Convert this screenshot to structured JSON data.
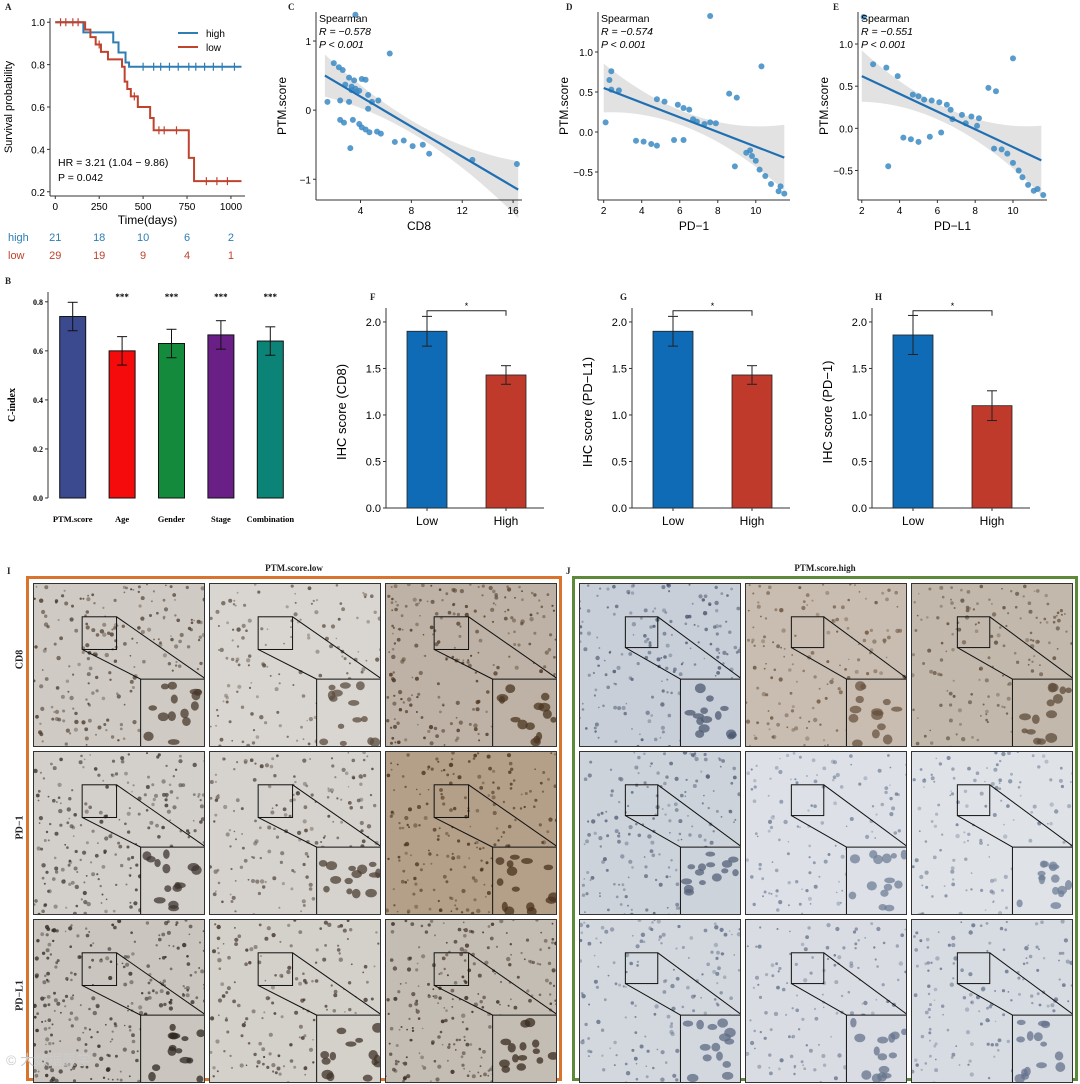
{
  "panel_labels": {
    "A": "A",
    "B": "B",
    "C": "C",
    "D": "D",
    "E": "E",
    "F": "F",
    "G": "G",
    "H": "H",
    "I": "I",
    "J": "J"
  },
  "colors": {
    "high": "#2e7db4",
    "low": "#c0432e",
    "scatter": "#3b8ac4",
    "fit": "#1f6fb2",
    "bar_low": "#0f6bb5",
    "bar_high": "#c03a2b",
    "frame_low": "#d9732e",
    "frame_high": "#5d8a3a"
  },
  "chart_data": [
    {
      "id": "A",
      "type": "line",
      "title": "",
      "xlabel": "Time(days)",
      "ylabel": "Survival probability",
      "xlim": [
        -30,
        1080
      ],
      "ylim": [
        0.18,
        1.02
      ],
      "xticks": [
        0,
        250,
        500,
        750,
        1000
      ],
      "yticks": [
        0.2,
        0.4,
        0.6,
        0.8,
        1.0
      ],
      "ytick_labels": [
        "0.2",
        "0.4",
        "0.6",
        "0.8",
        "1.0"
      ],
      "legend": [
        "high",
        "low"
      ],
      "series": [
        {
          "name": "high",
          "steps": [
            [
              0,
              1.0
            ],
            [
              160,
              1.0
            ],
            [
              160,
              0.952
            ],
            [
              330,
              0.952
            ],
            [
              330,
              0.905
            ],
            [
              360,
              0.905
            ],
            [
              360,
              0.857
            ],
            [
              400,
              0.857
            ],
            [
              400,
              0.81
            ],
            [
              420,
              0.81
            ],
            [
              420,
              0.79
            ],
            [
              1060,
              0.79
            ]
          ],
          "censor": [
            500,
            560,
            600,
            650,
            700,
            760,
            800,
            850,
            900,
            950,
            1020
          ]
        },
        {
          "name": "low",
          "steps": [
            [
              0,
              1.0
            ],
            [
              170,
              1.0
            ],
            [
              170,
              0.965
            ],
            [
              200,
              0.965
            ],
            [
              200,
              0.93
            ],
            [
              230,
              0.93
            ],
            [
              230,
              0.895
            ],
            [
              260,
              0.895
            ],
            [
              260,
              0.86
            ],
            [
              300,
              0.86
            ],
            [
              300,
              0.825
            ],
            [
              380,
              0.825
            ],
            [
              380,
              0.79
            ],
            [
              395,
              0.79
            ],
            [
              395,
              0.72
            ],
            [
              410,
              0.72
            ],
            [
              410,
              0.685
            ],
            [
              430,
              0.685
            ],
            [
              430,
              0.65
            ],
            [
              470,
              0.65
            ],
            [
              470,
              0.6
            ],
            [
              540,
              0.6
            ],
            [
              540,
              0.548
            ],
            [
              560,
              0.548
            ],
            [
              560,
              0.49
            ],
            [
              760,
              0.49
            ],
            [
              760,
              0.36
            ],
            [
              790,
              0.36
            ],
            [
              790,
              0.25
            ],
            [
              1060,
              0.25
            ]
          ],
          "censor": [
            30,
            60,
            100,
            130,
            250,
            450,
            590,
            620,
            690,
            860,
            920,
            980
          ]
        }
      ],
      "annotations": [
        "HR = 3.21 (1.04 − 9.86)",
        "P = 0.042"
      ],
      "risk_table": {
        "high": {
          "label": "high",
          "values": [
            "21",
            "18",
            "10",
            "6",
            "2"
          ]
        },
        "low": {
          "label": "low",
          "values": [
            "29",
            "19",
            "9",
            "4",
            "1"
          ]
        }
      }
    },
    {
      "id": "B",
      "type": "bar",
      "title": "",
      "xlabel": "",
      "ylabel": "C-index",
      "categories": [
        "PTM.score",
        "Age",
        "Gender",
        "Stage",
        "Combination"
      ],
      "values": [
        0.74,
        0.6,
        0.63,
        0.665,
        0.64
      ],
      "errors": [
        0.058,
        0.058,
        0.058,
        0.058,
        0.058
      ],
      "significance": [
        "",
        "***",
        "***",
        "***",
        "***"
      ],
      "bar_colors": [
        "#3b4a8f",
        "#f50b0b",
        "#138a3c",
        "#6a1f86",
        "#0b8377"
      ],
      "ylim": [
        0,
        0.84
      ],
      "yticks": [
        0,
        0.2,
        0.4,
        0.6,
        0.8
      ],
      "ytick_labels": [
        "0.0",
        "0.2",
        "0.4",
        "0.6",
        "0.8"
      ]
    },
    {
      "id": "C",
      "type": "scatter",
      "xlabel": "CD8",
      "ylabel": "PTM.score",
      "xlim": [
        0.5,
        16.7
      ],
      "ylim": [
        -1.3,
        1.42
      ],
      "xticks": [
        4,
        8,
        12,
        16
      ],
      "yticks": [
        -1,
        0,
        1
      ],
      "xtick_labels": [
        "4",
        "8",
        "12",
        "16"
      ],
      "ytick_labels": [
        "−1",
        "0",
        "1"
      ],
      "stats": [
        "Spearman",
        "R = −0.578",
        "P < 0.001"
      ],
      "fit": {
        "x": [
          1.2,
          16.4
        ],
        "y": [
          0.5,
          -1.15
        ]
      },
      "points": [
        [
          3.6,
          1.38
        ],
        [
          6.3,
          0.82
        ],
        [
          1.9,
          0.68
        ],
        [
          2.3,
          0.62
        ],
        [
          2.6,
          0.58
        ],
        [
          3.1,
          0.47
        ],
        [
          3.5,
          0.43
        ],
        [
          4.1,
          0.45
        ],
        [
          4.4,
          0.44
        ],
        [
          2.8,
          0.37
        ],
        [
          3.3,
          0.34
        ],
        [
          3.6,
          0.31
        ],
        [
          3.9,
          0.28
        ],
        [
          4.6,
          0.22
        ],
        [
          1.4,
          0.12
        ],
        [
          2.4,
          0.14
        ],
        [
          3.1,
          0.12
        ],
        [
          4.9,
          0.12
        ],
        [
          5.4,
          0.14
        ],
        [
          2.4,
          -0.14
        ],
        [
          2.7,
          -0.18
        ],
        [
          3.4,
          -0.14
        ],
        [
          3.9,
          -0.2
        ],
        [
          4.1,
          -0.25
        ],
        [
          4.4,
          -0.28
        ],
        [
          4.7,
          -0.32
        ],
        [
          5.3,
          -0.31
        ],
        [
          5.6,
          -0.34
        ],
        [
          6.7,
          -0.46
        ],
        [
          7.4,
          -0.44
        ],
        [
          8.1,
          -0.52
        ],
        [
          8.9,
          -0.5
        ],
        [
          3.2,
          -0.55
        ],
        [
          9.4,
          -0.63
        ],
        [
          12.8,
          -0.72
        ],
        [
          16.3,
          -0.78
        ],
        [
          4.6,
          0.02
        ],
        [
          3.3,
          0.29
        ],
        [
          3.7,
          0.26
        ]
      ]
    },
    {
      "id": "D",
      "type": "scatter",
      "xlabel": "PD−1",
      "ylabel": "PTM.score",
      "xlim": [
        1.7,
        11.8
      ],
      "ylim": [
        -0.85,
        1.5
      ],
      "xticks": [
        2,
        4,
        6,
        8,
        10
      ],
      "yticks": [
        -0.5,
        0,
        0.5,
        1.0
      ],
      "xtick_labels": [
        "2",
        "4",
        "6",
        "8",
        "10"
      ],
      "ytick_labels": [
        "−0.5",
        "0.0",
        "0.5",
        "1.0"
      ],
      "stats": [
        "Spearman",
        "R = −0.574",
        "P < 0.001"
      ],
      "fit": {
        "x": [
          2.0,
          11.5
        ],
        "y": [
          0.55,
          -0.32
        ]
      },
      "points": [
        [
          7.6,
          1.45
        ],
        [
          2.4,
          0.76
        ],
        [
          2.3,
          0.65
        ],
        [
          2.4,
          0.53
        ],
        [
          2.8,
          0.52
        ],
        [
          2.1,
          0.12
        ],
        [
          4.8,
          0.41
        ],
        [
          5.2,
          0.38
        ],
        [
          5.9,
          0.34
        ],
        [
          6.2,
          0.3
        ],
        [
          6.5,
          0.28
        ],
        [
          6.7,
          0.16
        ],
        [
          6.9,
          0.13
        ],
        [
          7.3,
          0.1
        ],
        [
          7.6,
          0.12
        ],
        [
          7.9,
          0.11
        ],
        [
          8.6,
          0.48
        ],
        [
          9.0,
          0.43
        ],
        [
          10.3,
          0.82
        ],
        [
          3.7,
          -0.11
        ],
        [
          4.1,
          -0.12
        ],
        [
          4.5,
          -0.15
        ],
        [
          4.8,
          -0.17
        ],
        [
          5.7,
          -0.1
        ],
        [
          6.2,
          -0.1
        ],
        [
          8.9,
          -0.43
        ],
        [
          9.5,
          -0.26
        ],
        [
          9.8,
          -0.3
        ],
        [
          10.2,
          -0.47
        ],
        [
          10.5,
          -0.55
        ],
        [
          10.8,
          -0.65
        ],
        [
          11.2,
          -0.74
        ],
        [
          11.5,
          -0.77
        ],
        [
          11.3,
          -0.68
        ],
        [
          10.0,
          -0.36
        ],
        [
          9.7,
          -0.23
        ]
      ]
    },
    {
      "id": "E",
      "type": "scatter",
      "xlabel": "PD−L1",
      "ylabel": "PTM.score",
      "xlim": [
        1.8,
        11.8
      ],
      "ylim": [
        -0.85,
        1.38
      ],
      "xticks": [
        2,
        4,
        6,
        8,
        10
      ],
      "yticks": [
        -0.5,
        0,
        0.5,
        1.0
      ],
      "xtick_labels": [
        "2",
        "4",
        "6",
        "8",
        "10"
      ],
      "ytick_labels": [
        "−0.5",
        "0.0",
        "0.5",
        "1.0"
      ],
      "stats": [
        "Spearman",
        "R = −0.551",
        "P < 0.001"
      ],
      "fit": {
        "x": [
          2.0,
          11.5
        ],
        "y": [
          0.62,
          -0.38
        ]
      },
      "points": [
        [
          2.1,
          1.32
        ],
        [
          2.6,
          0.76
        ],
        [
          3.3,
          0.72
        ],
        [
          3.9,
          0.62
        ],
        [
          4.7,
          0.4
        ],
        [
          5.0,
          0.38
        ],
        [
          5.3,
          0.34
        ],
        [
          5.7,
          0.33
        ],
        [
          6.1,
          0.31
        ],
        [
          6.5,
          0.28
        ],
        [
          6.7,
          0.22
        ],
        [
          7.3,
          0.16
        ],
        [
          7.8,
          0.14
        ],
        [
          8.2,
          0.12
        ],
        [
          8.7,
          0.48
        ],
        [
          9.1,
          0.44
        ],
        [
          10.0,
          0.83
        ],
        [
          3.4,
          -0.45
        ],
        [
          4.2,
          -0.11
        ],
        [
          4.6,
          -0.13
        ],
        [
          5.0,
          -0.16
        ],
        [
          5.6,
          -0.1
        ],
        [
          6.2,
          -0.05
        ],
        [
          9.0,
          -0.24
        ],
        [
          9.4,
          -0.25
        ],
        [
          9.7,
          -0.3
        ],
        [
          10.0,
          -0.41
        ],
        [
          10.3,
          -0.5
        ],
        [
          10.5,
          -0.58
        ],
        [
          10.8,
          -0.67
        ],
        [
          11.1,
          -0.74
        ],
        [
          11.6,
          -0.79
        ],
        [
          11.3,
          -0.72
        ],
        [
          6.8,
          0.11
        ],
        [
          7.5,
          0.06
        ],
        [
          8.1,
          0.03
        ]
      ]
    },
    {
      "id": "F",
      "type": "bar",
      "xlabel": "",
      "ylabel": "IHC score (CD8)",
      "categories": [
        "Low",
        "High"
      ],
      "values": [
        1.9,
        1.43
      ],
      "errors": [
        0.16,
        0.1
      ],
      "ylim": [
        0,
        2.15
      ],
      "yticks": [
        0,
        0.5,
        1.0,
        1.5,
        2.0
      ],
      "ytick_labels": [
        "0.0",
        "0.5",
        "1.0",
        "1.5",
        "2.0"
      ],
      "significance": "*"
    },
    {
      "id": "G",
      "type": "bar",
      "xlabel": "",
      "ylabel": "IHC score (PD−L1)",
      "categories": [
        "Low",
        "High"
      ],
      "values": [
        1.9,
        1.43
      ],
      "errors": [
        0.16,
        0.1
      ],
      "ylim": [
        0,
        2.15
      ],
      "yticks": [
        0,
        0.5,
        1.0,
        1.5,
        2.0
      ],
      "ytick_labels": [
        "0.0",
        "0.5",
        "1.0",
        "1.5",
        "2.0"
      ],
      "significance": "*"
    },
    {
      "id": "H",
      "type": "bar",
      "xlabel": "",
      "ylabel": "IHC score (PD−1)",
      "categories": [
        "Low",
        "High"
      ],
      "values": [
        1.86,
        1.1
      ],
      "errors": [
        0.21,
        0.16
      ],
      "ylim": [
        0,
        2.15
      ],
      "yticks": [
        0,
        0.5,
        1.0,
        1.5,
        2.0
      ],
      "ytick_labels": [
        "0.0",
        "0.5",
        "1.0",
        "1.5",
        "2.0"
      ],
      "significance": "*"
    }
  ],
  "ihc": {
    "low": {
      "title": "PTM.score.low",
      "rows": [
        "CD8",
        "PD−1",
        "PD−L1"
      ]
    },
    "high": {
      "title": "PTM.score.high"
    }
  },
  "watermark": "© 大数据医学"
}
